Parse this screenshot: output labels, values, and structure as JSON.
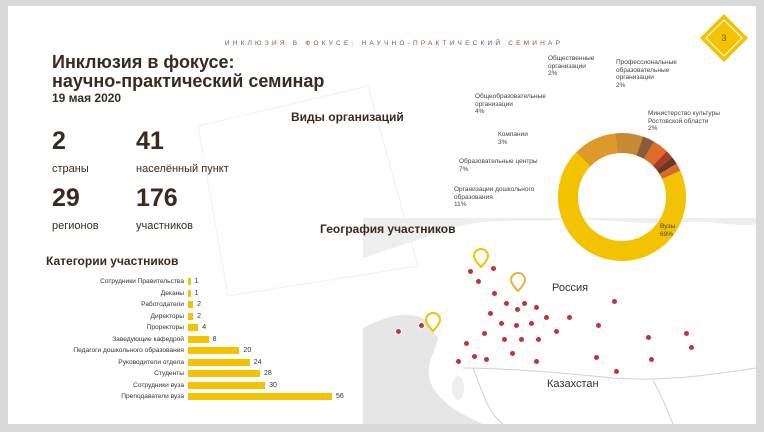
{
  "header": {
    "tagline": "ИНКЛЮЗИЯ В ФОКУСЕ: НАУЧНО-ПРАКТИЧЕСКИЙ СЕМИНАР",
    "slide_number": "3"
  },
  "title": {
    "line1": "Инклюзия в фокусе:",
    "line2": "научно-практический семинар",
    "date": "19 мая 2020"
  },
  "stats": [
    {
      "value": "2",
      "label": "страны"
    },
    {
      "value": "41",
      "label": "населённый пункт"
    },
    {
      "value": "29",
      "label": "регионов"
    },
    {
      "value": "176",
      "label": "участников"
    }
  ],
  "sections": {
    "categories": "Категории участников",
    "org_types": "Виды организаций",
    "geography": "География участников"
  },
  "colors": {
    "accent": "#f3c200",
    "text": "#3b2a1e",
    "marker": "#c63333"
  },
  "map": {
    "country_russia": "Россия",
    "country_kazakhstan": "Казахстан"
  },
  "chart_data": [
    {
      "type": "bar",
      "orientation": "horizontal",
      "title": "Категории участников",
      "categories": [
        "Сотрудники Правительства",
        "Деканы",
        "Работодатели",
        "Директоры",
        "Проректоры",
        "Заведующие кафедрой",
        "Педагоги дошкольного образования",
        "Руководители отдела",
        "Студенты",
        "Сотрудники вуза",
        "Преподаватели вуза"
      ],
      "values": [
        1,
        1,
        2,
        2,
        4,
        8,
        20,
        24,
        28,
        30,
        56
      ],
      "value_labels": [
        "1",
        "1",
        "2",
        "2",
        "4",
        "8",
        "20",
        "24",
        "28",
        "30",
        "56"
      ],
      "xlim": [
        0,
        56
      ]
    },
    {
      "type": "pie",
      "title": "Виды организаций",
      "donut": true,
      "slices": [
        {
          "label": "Вузы",
          "percent": "69%",
          "value": 69,
          "color": "#f3c200"
        },
        {
          "label": "Организации дошкольного образования",
          "percent": "11%",
          "value": 11,
          "color": "#dd9a2a"
        },
        {
          "label": "Образовательные центры",
          "percent": "7%",
          "value": 7,
          "color": "#c78a32"
        },
        {
          "label": "Компании",
          "percent": "3%",
          "value": 3,
          "color": "#8a5a3a"
        },
        {
          "label": "Общеобразовательные организации",
          "percent": "4%",
          "value": 4,
          "color": "#e06a2a"
        },
        {
          "label": "Общественные организации",
          "percent": "2%",
          "value": 2,
          "color": "#a83a2a"
        },
        {
          "label": "Профессиональные образовательные организации",
          "percent": "2%",
          "value": 2,
          "color": "#6b3a22"
        },
        {
          "label": "Министерство культуры Ростовской области",
          "percent": "2%",
          "value": 2,
          "color": "#d86b2a"
        }
      ]
    }
  ]
}
